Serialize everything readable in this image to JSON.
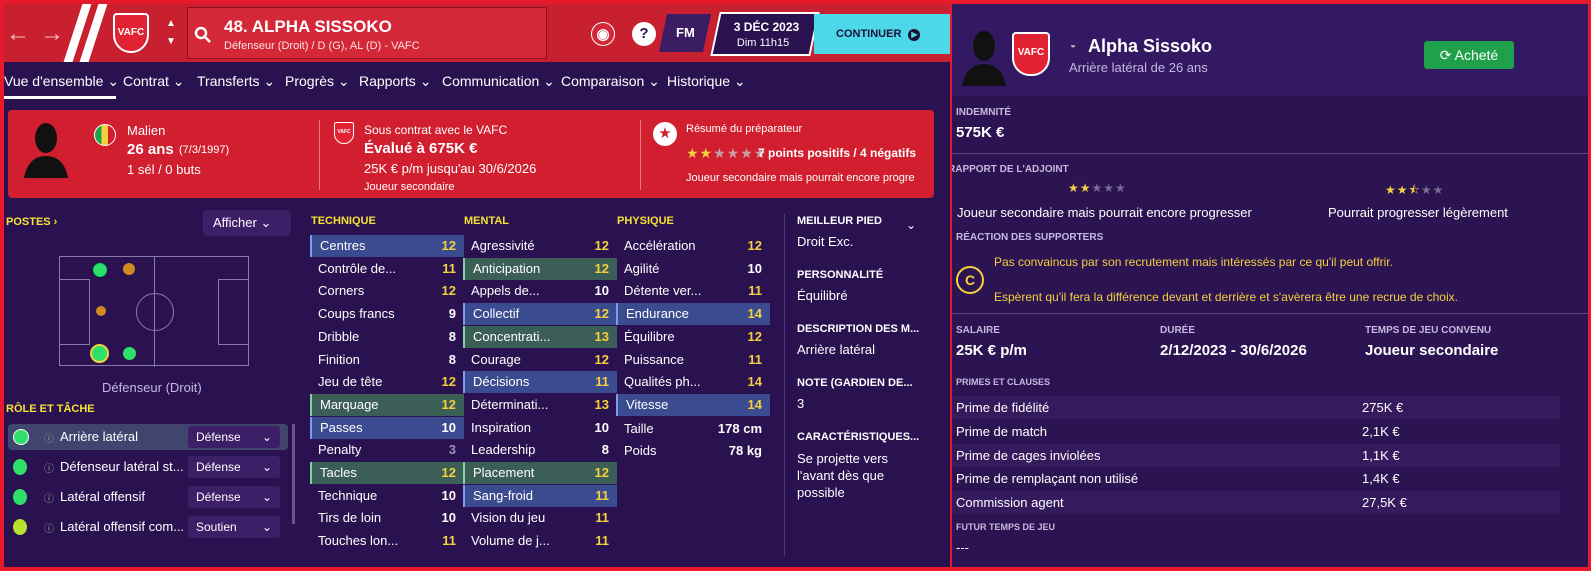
{
  "header": {
    "player_title": "48. ALPHA SISSOKO",
    "player_sub": "Défenseur (Droit) / D (G), AL (D) - VAFC",
    "club_short": "VAFC",
    "help": "?",
    "fm": "FM",
    "date": "3 DÉC 2023",
    "day": "Dim 11h15",
    "continue_label": "CONTINUER"
  },
  "tabs": [
    "Vue d'ensemble",
    "Contrat",
    "Transferts",
    "Progrès",
    "Rapports",
    "Communication",
    "Comparaison",
    "Historique"
  ],
  "card": {
    "nationality": "Malien",
    "age": "26 ans",
    "dob": "(7/3/1997)",
    "caps": "1 sél / 0 buts",
    "contract_with": "Sous contrat avec le VAFC",
    "value": "Évalué à 675K €",
    "wage": "25K € p/m jusqu'au 30/6/2026",
    "status": "Joueur secondaire",
    "coach_summary": "Résumé du préparateur",
    "coach_points": "7 points positifs / 4 négatifs",
    "coach_text": "Joueur secondaire mais pourrait encore progre",
    "stars_filled": 2,
    "stars_total": 6
  },
  "positions": {
    "title": "POSTES",
    "show": "Afficher",
    "pitch_label": "Défenseur (Droit)"
  },
  "roles": {
    "title": "RÔLE ET TÂCHE",
    "items": [
      {
        "name": "Arrière latéral",
        "duty": "Défense",
        "color": "#2ee06a"
      },
      {
        "name": "Défenseur latéral st...",
        "duty": "Défense",
        "color": "#2ee06a"
      },
      {
        "name": "Latéral offensif",
        "duty": "Défense",
        "color": "#2ee06a"
      },
      {
        "name": "Latéral offensif com...",
        "duty": "Soutien",
        "color": "#b8e02e"
      }
    ]
  },
  "attributes": {
    "technique": {
      "title": "TECHNIQUE",
      "rows": [
        [
          "Centres",
          "12"
        ],
        [
          "Contrôle de...",
          "11"
        ],
        [
          "Corners",
          "12"
        ],
        [
          "Coups francs",
          "9"
        ],
        [
          "Dribble",
          "8"
        ],
        [
          "Finition",
          "8"
        ],
        [
          "Jeu de tête",
          "12"
        ],
        [
          "Marquage",
          "12"
        ],
        [
          "Passes",
          "10"
        ],
        [
          "Penalty",
          "3"
        ],
        [
          "Tacles",
          "12"
        ],
        [
          "Technique",
          "10"
        ],
        [
          "Tirs de loin",
          "10"
        ],
        [
          "Touches lon...",
          "11"
        ]
      ]
    },
    "mental": {
      "title": "MENTAL",
      "rows": [
        [
          "Agressivité",
          "12"
        ],
        [
          "Anticipation",
          "12"
        ],
        [
          "Appels de...",
          "10"
        ],
        [
          "Collectif",
          "12"
        ],
        [
          "Concentrati...",
          "13"
        ],
        [
          "Courage",
          "12"
        ],
        [
          "Décisions",
          "11"
        ],
        [
          "Déterminati...",
          "13"
        ],
        [
          "Inspiration",
          "10"
        ],
        [
          "Leadership",
          "8"
        ],
        [
          "Placement",
          "12"
        ],
        [
          "Sang-froid",
          "11"
        ],
        [
          "Vision du jeu",
          "11"
        ],
        [
          "Volume de j...",
          "11"
        ]
      ]
    },
    "physique": {
      "title": "PHYSIQUE",
      "rows": [
        [
          "Accélération",
          "12"
        ],
        [
          "Agilité",
          "10"
        ],
        [
          "Détente ver...",
          "11"
        ],
        [
          "Endurance",
          "14"
        ],
        [
          "Équilibre",
          "12"
        ],
        [
          "Puissance",
          "11"
        ],
        [
          "Qualités ph...",
          "14"
        ],
        [
          "Vitesse",
          "14"
        ]
      ]
    },
    "height_label": "Taille",
    "height": "178 cm",
    "weight_label": "Poids",
    "weight": "78 kg"
  },
  "info": {
    "foot_label": "MEILLEUR PIED",
    "foot": "Droit Exc.",
    "pers_label": "PERSONNALITÉ",
    "pers": "Équilibré",
    "desc_label": "DESCRIPTION DES M...",
    "desc": "Arrière latéral",
    "note_label": "NOTE (GARDIEN DE...",
    "note": "3",
    "char_label": "CARACTÉRISTIQUES...",
    "char": "Se projette vers l'avant dès que possible"
  },
  "right": {
    "name": "Alpha Sissoko",
    "subtitle": "Arrière latéral de 26 ans",
    "bought": "Acheté",
    "fee_label": "INDEMNITÉ",
    "fee": "575K €",
    "assistant_label": "RAPPORT DE L'ADJOINT",
    "assist_left": "Joueur secondaire mais pourrait encore progresser",
    "assist_right": "Pourrait progresser légèrement",
    "supporters_label": "RÉACTION DES SUPPORTERS",
    "supporters_grade": "C",
    "supporters_1": "Pas convaincus par son recrutement mais intéressés par ce qu'il peut offrir.",
    "supporters_2": "Espèrent qu'il fera la différence devant et derrière et s'avèrera être une recrue de choix.",
    "salary_label": "SALAIRE",
    "salary": "25K € p/m",
    "duration_label": "DURÉE",
    "duration": "2/12/2023 - 30/6/2026",
    "playtime_label": "TEMPS DE JEU CONVENU",
    "playtime": "Joueur secondaire",
    "clauses_label": "PRIMES ET CLAUSES",
    "clauses": [
      [
        "Prime de fidélité",
        "275K €"
      ],
      [
        "Prime de match",
        "2,1K €"
      ],
      [
        "Prime de cages inviolées",
        "1,1K €"
      ],
      [
        "Prime de remplaçant non utilisé",
        "1,4K €"
      ],
      [
        "Commission agent",
        "27,5K €"
      ]
    ],
    "future_label": "FUTUR TEMPS DE JEU",
    "future": "---"
  },
  "colors": {
    "accent_red": "#d11f2f",
    "bg_purple": "#2a1251",
    "highlight_blue": "#3b4b8f",
    "highlight_green": "#3b5e57",
    "star": "#f4d03f",
    "green_button": "#1fa04a"
  }
}
